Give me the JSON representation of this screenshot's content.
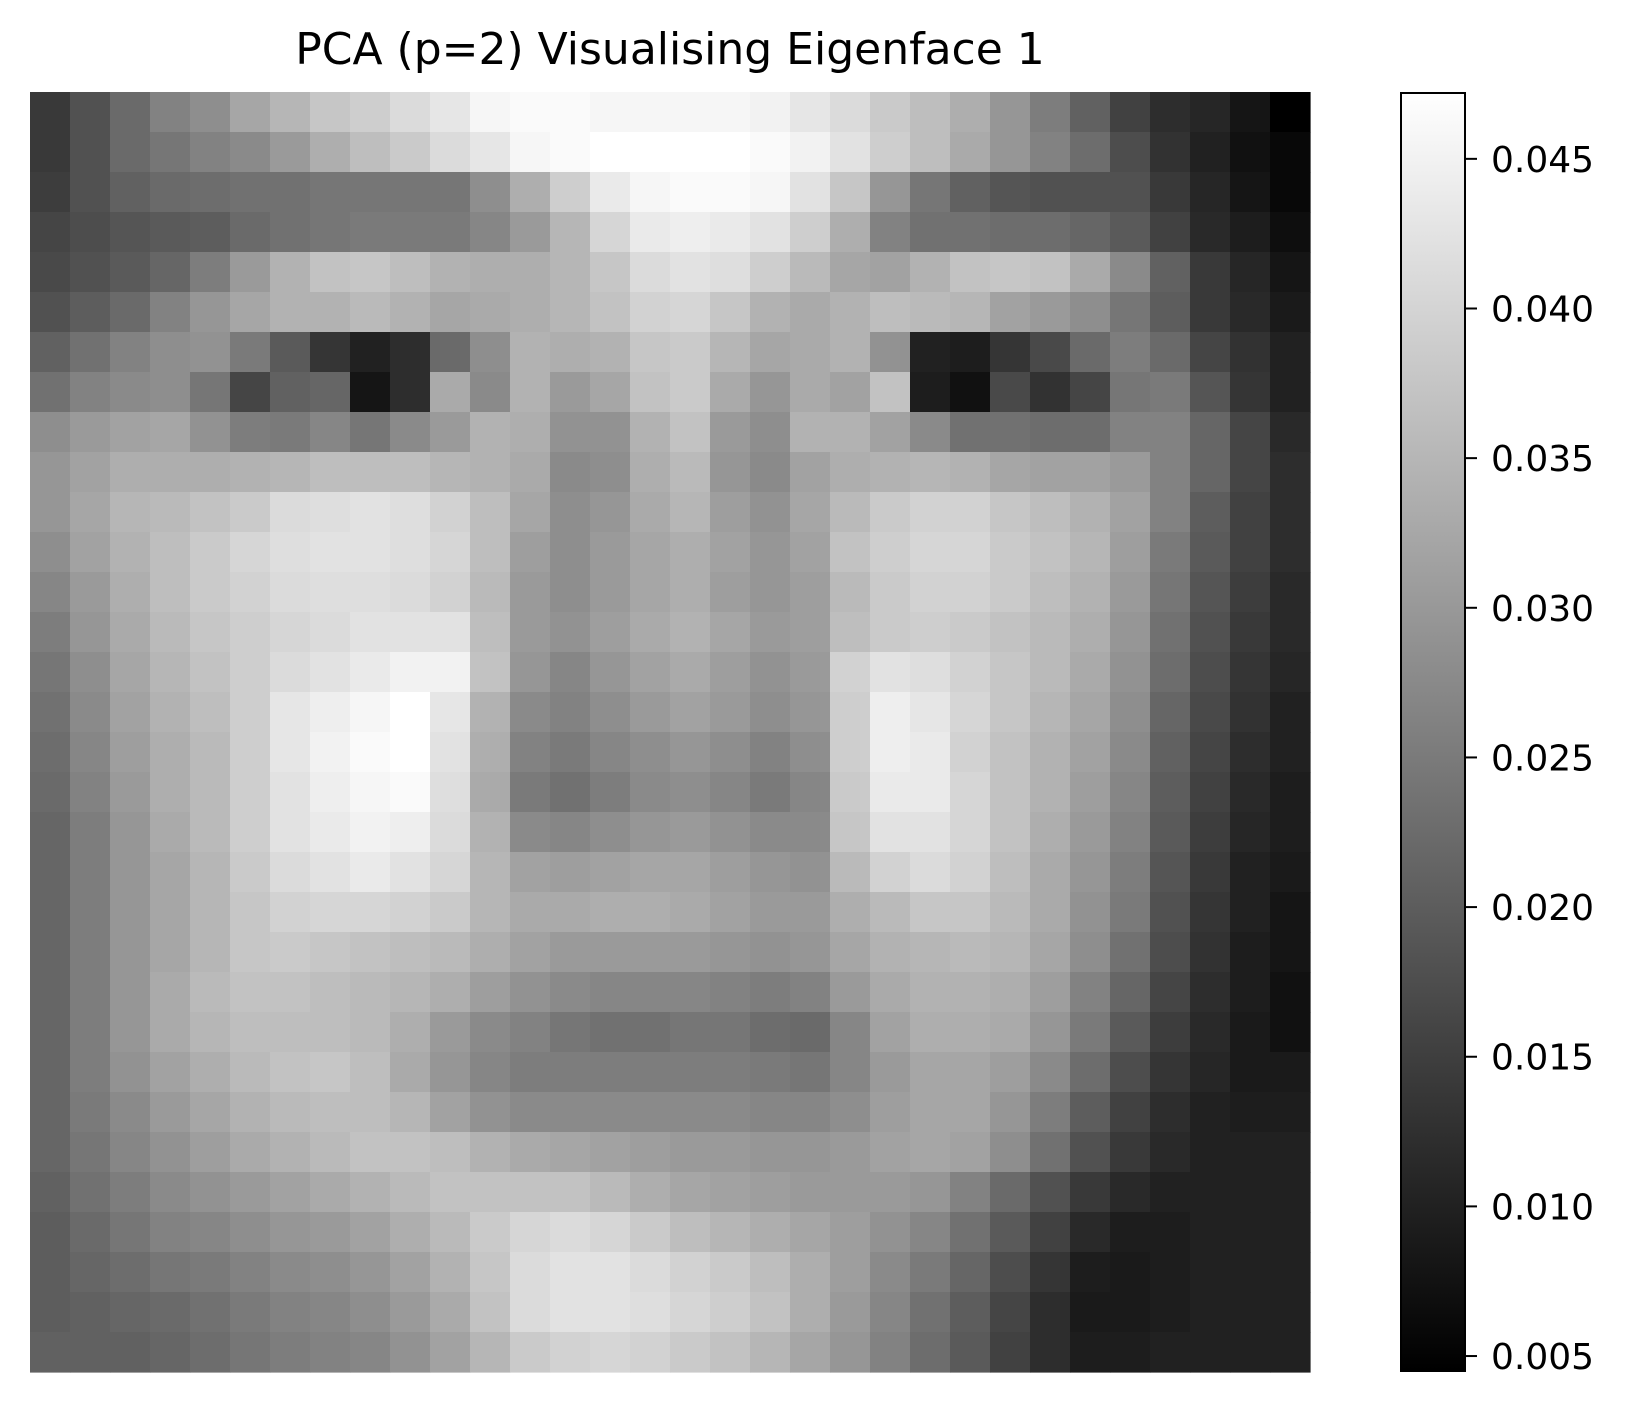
{
  "chart_data": {
    "type": "heatmap",
    "title": "PCA (p=2) Visualising Eigenface 1",
    "colormap": "gray",
    "rows": 32,
    "cols": 32,
    "axes_visible": false,
    "colorbar": {
      "vmin": 0.0045,
      "vmax": 0.0472,
      "ticks": [
        0.005,
        0.01,
        0.015,
        0.02,
        0.025,
        0.03,
        0.035,
        0.04,
        0.045
      ],
      "tick_labels": [
        "0.005",
        "0.010",
        "0.015",
        "0.020",
        "0.025",
        "0.030",
        "0.035",
        "0.040",
        "0.045"
      ]
    },
    "values_note": "approximate 32x32 pixel intensities read from the grayscale image",
    "values": [
      [
        0.0141,
        0.0181,
        0.0222,
        0.0262,
        0.0283,
        0.0323,
        0.035,
        0.0376,
        0.039,
        0.0411,
        0.043,
        0.0457,
        0.0464,
        0.0464,
        0.0457,
        0.0457,
        0.0457,
        0.0457,
        0.0451,
        0.043,
        0.0411,
        0.0384,
        0.0363,
        0.0336,
        0.0296,
        0.0255,
        0.0208,
        0.0154,
        0.0121,
        0.0108,
        0.0081,
        0.0045
      ],
      [
        0.0141,
        0.0181,
        0.0222,
        0.0242,
        0.0262,
        0.0276,
        0.0303,
        0.0336,
        0.0363,
        0.0384,
        0.0411,
        0.043,
        0.0457,
        0.0464,
        0.0472,
        0.0472,
        0.0472,
        0.0472,
        0.0464,
        0.0451,
        0.0424,
        0.039,
        0.0363,
        0.033,
        0.0296,
        0.0262,
        0.0228,
        0.0174,
        0.0128,
        0.0101,
        0.0074,
        0.0058
      ],
      [
        0.0147,
        0.0181,
        0.0208,
        0.0222,
        0.0228,
        0.0235,
        0.0235,
        0.0242,
        0.0242,
        0.0242,
        0.0242,
        0.0283,
        0.0336,
        0.039,
        0.0437,
        0.0457,
        0.0464,
        0.0464,
        0.0457,
        0.0424,
        0.0376,
        0.0296,
        0.0242,
        0.0208,
        0.0188,
        0.0181,
        0.0181,
        0.0181,
        0.0141,
        0.0108,
        0.0081,
        0.0058
      ],
      [
        0.0161,
        0.0174,
        0.0188,
        0.0195,
        0.0201,
        0.0222,
        0.0235,
        0.0242,
        0.0249,
        0.0249,
        0.0249,
        0.0269,
        0.0303,
        0.035,
        0.0403,
        0.0437,
        0.0444,
        0.0437,
        0.0424,
        0.039,
        0.0336,
        0.0262,
        0.0235,
        0.0235,
        0.0228,
        0.0228,
        0.0215,
        0.0195,
        0.0154,
        0.0114,
        0.0094,
        0.0068
      ],
      [
        0.0168,
        0.0181,
        0.0195,
        0.0215,
        0.0255,
        0.0303,
        0.0343,
        0.037,
        0.0376,
        0.0363,
        0.0343,
        0.0336,
        0.0336,
        0.035,
        0.0376,
        0.0411,
        0.0424,
        0.0417,
        0.039,
        0.0357,
        0.0323,
        0.0316,
        0.0343,
        0.037,
        0.0376,
        0.037,
        0.033,
        0.0276,
        0.0208,
        0.0141,
        0.0108,
        0.0081
      ],
      [
        0.0181,
        0.0201,
        0.0222,
        0.0262,
        0.0296,
        0.0323,
        0.0343,
        0.0343,
        0.0357,
        0.0343,
        0.0323,
        0.033,
        0.0336,
        0.035,
        0.037,
        0.0397,
        0.0403,
        0.0376,
        0.0343,
        0.033,
        0.0343,
        0.0363,
        0.0357,
        0.035,
        0.0316,
        0.0303,
        0.0283,
        0.0242,
        0.0201,
        0.0141,
        0.0114,
        0.0088
      ],
      [
        0.0208,
        0.0235,
        0.0262,
        0.0283,
        0.029,
        0.0249,
        0.0195,
        0.0134,
        0.0101,
        0.0121,
        0.0222,
        0.0283,
        0.0343,
        0.0336,
        0.0343,
        0.0376,
        0.0384,
        0.035,
        0.0323,
        0.033,
        0.0343,
        0.029,
        0.0101,
        0.0094,
        0.0134,
        0.0168,
        0.0222,
        0.0255,
        0.0222,
        0.0161,
        0.0128,
        0.0101
      ],
      [
        0.0235,
        0.0262,
        0.0276,
        0.0283,
        0.0242,
        0.0161,
        0.0208,
        0.0215,
        0.0081,
        0.0121,
        0.033,
        0.0276,
        0.0343,
        0.0303,
        0.0323,
        0.037,
        0.0384,
        0.033,
        0.0296,
        0.033,
        0.0316,
        0.037,
        0.0094,
        0.0074,
        0.0168,
        0.0128,
        0.0161,
        0.0242,
        0.0249,
        0.0188,
        0.0134,
        0.0101
      ],
      [
        0.0283,
        0.0303,
        0.0316,
        0.0323,
        0.029,
        0.0255,
        0.0249,
        0.0269,
        0.0242,
        0.0276,
        0.0303,
        0.0343,
        0.0336,
        0.029,
        0.029,
        0.0343,
        0.037,
        0.0303,
        0.0283,
        0.0343,
        0.0343,
        0.0316,
        0.0276,
        0.0235,
        0.0235,
        0.0228,
        0.0228,
        0.0262,
        0.0262,
        0.0215,
        0.0161,
        0.0114
      ],
      [
        0.0296,
        0.0316,
        0.0336,
        0.0336,
        0.0336,
        0.0343,
        0.035,
        0.0363,
        0.0363,
        0.0363,
        0.035,
        0.0343,
        0.033,
        0.0276,
        0.0283,
        0.0336,
        0.0357,
        0.0296,
        0.0276,
        0.0316,
        0.0336,
        0.0343,
        0.035,
        0.0343,
        0.0323,
        0.0316,
        0.0316,
        0.0303,
        0.0262,
        0.0215,
        0.0161,
        0.0121
      ],
      [
        0.0296,
        0.0323,
        0.035,
        0.0357,
        0.037,
        0.0384,
        0.0411,
        0.0417,
        0.0424,
        0.0417,
        0.0397,
        0.0363,
        0.0323,
        0.0283,
        0.0296,
        0.033,
        0.035,
        0.031,
        0.029,
        0.0323,
        0.0357,
        0.0384,
        0.0397,
        0.0397,
        0.0376,
        0.0363,
        0.0343,
        0.0316,
        0.0262,
        0.0201,
        0.0154,
        0.0121
      ],
      [
        0.0283,
        0.0316,
        0.0343,
        0.0363,
        0.0384,
        0.0403,
        0.0417,
        0.0424,
        0.0424,
        0.0417,
        0.0403,
        0.0363,
        0.031,
        0.0283,
        0.0303,
        0.0323,
        0.0336,
        0.0316,
        0.0296,
        0.0316,
        0.037,
        0.039,
        0.0403,
        0.0403,
        0.0384,
        0.037,
        0.035,
        0.031,
        0.0249,
        0.0195,
        0.0154,
        0.0121
      ],
      [
        0.0269,
        0.0303,
        0.0336,
        0.0363,
        0.0384,
        0.0397,
        0.0411,
        0.0417,
        0.0417,
        0.0411,
        0.0397,
        0.0357,
        0.0303,
        0.0283,
        0.0303,
        0.0323,
        0.0336,
        0.031,
        0.0296,
        0.031,
        0.0357,
        0.0384,
        0.0397,
        0.0397,
        0.0384,
        0.0363,
        0.0343,
        0.0303,
        0.0242,
        0.0188,
        0.0147,
        0.0114
      ],
      [
        0.0255,
        0.0296,
        0.033,
        0.0357,
        0.0376,
        0.039,
        0.0403,
        0.0411,
        0.0424,
        0.0424,
        0.0424,
        0.0363,
        0.0303,
        0.029,
        0.031,
        0.033,
        0.0343,
        0.0323,
        0.0303,
        0.031,
        0.0363,
        0.0384,
        0.039,
        0.0384,
        0.037,
        0.0357,
        0.0336,
        0.0296,
        0.0235,
        0.0181,
        0.0141,
        0.0114
      ],
      [
        0.0242,
        0.0283,
        0.0323,
        0.035,
        0.037,
        0.039,
        0.0411,
        0.0424,
        0.0437,
        0.0451,
        0.0451,
        0.037,
        0.0296,
        0.0269,
        0.0296,
        0.0316,
        0.033,
        0.031,
        0.029,
        0.0303,
        0.0397,
        0.0424,
        0.0417,
        0.0397,
        0.0376,
        0.0357,
        0.033,
        0.029,
        0.0228,
        0.0174,
        0.0134,
        0.0108
      ],
      [
        0.0235,
        0.0276,
        0.0316,
        0.0343,
        0.0363,
        0.039,
        0.043,
        0.0444,
        0.0457,
        0.0472,
        0.043,
        0.0343,
        0.0276,
        0.0262,
        0.0283,
        0.0303,
        0.0316,
        0.0303,
        0.0283,
        0.0296,
        0.039,
        0.0444,
        0.043,
        0.0403,
        0.0376,
        0.035,
        0.0323,
        0.0283,
        0.0215,
        0.0168,
        0.0128,
        0.0101
      ],
      [
        0.0228,
        0.0269,
        0.031,
        0.0336,
        0.0357,
        0.039,
        0.043,
        0.0451,
        0.0464,
        0.0472,
        0.0424,
        0.0336,
        0.0262,
        0.0249,
        0.0269,
        0.0283,
        0.0296,
        0.0283,
        0.0262,
        0.0283,
        0.039,
        0.0444,
        0.0437,
        0.0397,
        0.037,
        0.0343,
        0.0316,
        0.0276,
        0.0208,
        0.0161,
        0.0121,
        0.0101
      ],
      [
        0.0222,
        0.0262,
        0.0303,
        0.0336,
        0.0357,
        0.039,
        0.0424,
        0.0444,
        0.0457,
        0.0464,
        0.0417,
        0.033,
        0.0249,
        0.0235,
        0.0255,
        0.0276,
        0.0283,
        0.0269,
        0.0249,
        0.0269,
        0.0384,
        0.0437,
        0.0437,
        0.0403,
        0.037,
        0.0343,
        0.031,
        0.0269,
        0.0201,
        0.0154,
        0.0114,
        0.0094
      ],
      [
        0.0215,
        0.0255,
        0.0296,
        0.033,
        0.0357,
        0.039,
        0.0424,
        0.0437,
        0.0451,
        0.0444,
        0.0411,
        0.0343,
        0.0276,
        0.0269,
        0.0283,
        0.0296,
        0.0303,
        0.029,
        0.0276,
        0.0276,
        0.0376,
        0.0424,
        0.0424,
        0.0403,
        0.037,
        0.0336,
        0.0303,
        0.0262,
        0.0195,
        0.0147,
        0.0108,
        0.0094
      ],
      [
        0.0215,
        0.0255,
        0.0296,
        0.0323,
        0.035,
        0.0384,
        0.0411,
        0.0424,
        0.0437,
        0.0424,
        0.0403,
        0.035,
        0.0316,
        0.031,
        0.0316,
        0.0323,
        0.0323,
        0.031,
        0.0296,
        0.029,
        0.0357,
        0.0397,
        0.0411,
        0.0397,
        0.0363,
        0.033,
        0.0296,
        0.0255,
        0.0188,
        0.0141,
        0.0101,
        0.0088
      ],
      [
        0.0215,
        0.0255,
        0.0296,
        0.0323,
        0.035,
        0.0376,
        0.0397,
        0.0403,
        0.0403,
        0.0397,
        0.0384,
        0.035,
        0.033,
        0.033,
        0.0336,
        0.0336,
        0.033,
        0.0316,
        0.0303,
        0.0303,
        0.0336,
        0.0357,
        0.0376,
        0.0376,
        0.0357,
        0.033,
        0.029,
        0.0249,
        0.0181,
        0.0134,
        0.0101,
        0.0081
      ],
      [
        0.0215,
        0.0255,
        0.0296,
        0.0323,
        0.035,
        0.0376,
        0.0384,
        0.0376,
        0.037,
        0.0363,
        0.0357,
        0.0336,
        0.0316,
        0.0303,
        0.0303,
        0.0303,
        0.0303,
        0.0296,
        0.029,
        0.0296,
        0.0323,
        0.0343,
        0.035,
        0.0357,
        0.035,
        0.0323,
        0.0283,
        0.0235,
        0.0174,
        0.0128,
        0.0094,
        0.0081
      ],
      [
        0.0215,
        0.0255,
        0.0296,
        0.033,
        0.0357,
        0.037,
        0.037,
        0.0363,
        0.0357,
        0.035,
        0.0336,
        0.031,
        0.029,
        0.0276,
        0.0269,
        0.0269,
        0.0269,
        0.0262,
        0.0255,
        0.0262,
        0.0303,
        0.033,
        0.0343,
        0.0343,
        0.0336,
        0.031,
        0.0262,
        0.0215,
        0.0161,
        0.0121,
        0.0094,
        0.0074
      ],
      [
        0.0215,
        0.0255,
        0.0296,
        0.033,
        0.035,
        0.0363,
        0.0363,
        0.0363,
        0.0357,
        0.0336,
        0.0303,
        0.0276,
        0.0262,
        0.0242,
        0.0235,
        0.0235,
        0.0242,
        0.0242,
        0.0228,
        0.0222,
        0.0269,
        0.0316,
        0.0336,
        0.0336,
        0.033,
        0.0296,
        0.0249,
        0.0195,
        0.0147,
        0.0114,
        0.0088,
        0.0074
      ],
      [
        0.0215,
        0.0255,
        0.029,
        0.0316,
        0.0336,
        0.0357,
        0.037,
        0.0376,
        0.0363,
        0.033,
        0.0296,
        0.0269,
        0.0255,
        0.0255,
        0.0255,
        0.0255,
        0.0255,
        0.0255,
        0.0249,
        0.0242,
        0.0269,
        0.0303,
        0.0323,
        0.0323,
        0.031,
        0.0276,
        0.0228,
        0.0174,
        0.0134,
        0.0108,
        0.0088,
        0.0088
      ],
      [
        0.0215,
        0.0249,
        0.0276,
        0.0303,
        0.0323,
        0.0343,
        0.0357,
        0.0363,
        0.0363,
        0.035,
        0.0316,
        0.029,
        0.0276,
        0.0276,
        0.0276,
        0.0276,
        0.0276,
        0.0276,
        0.0269,
        0.0269,
        0.0283,
        0.031,
        0.0323,
        0.0323,
        0.0296,
        0.0255,
        0.0201,
        0.0154,
        0.0121,
        0.0101,
        0.0094,
        0.0094
      ],
      [
        0.0215,
        0.0242,
        0.0269,
        0.029,
        0.031,
        0.033,
        0.0343,
        0.0357,
        0.037,
        0.037,
        0.0363,
        0.0343,
        0.033,
        0.0323,
        0.0316,
        0.031,
        0.0303,
        0.0303,
        0.0296,
        0.0296,
        0.0303,
        0.0316,
        0.0323,
        0.0316,
        0.0283,
        0.0235,
        0.0181,
        0.0141,
        0.0114,
        0.0101,
        0.0101,
        0.0101
      ],
      [
        0.0208,
        0.0235,
        0.0255,
        0.0276,
        0.029,
        0.0303,
        0.0316,
        0.033,
        0.0343,
        0.0357,
        0.037,
        0.037,
        0.037,
        0.037,
        0.0357,
        0.0336,
        0.0323,
        0.0316,
        0.031,
        0.0303,
        0.0303,
        0.0303,
        0.0296,
        0.0262,
        0.0222,
        0.0181,
        0.0141,
        0.0114,
        0.0101,
        0.0101,
        0.0101,
        0.0101
      ],
      [
        0.0201,
        0.0222,
        0.0242,
        0.0262,
        0.0269,
        0.0283,
        0.0296,
        0.0303,
        0.0316,
        0.0336,
        0.0357,
        0.0384,
        0.0403,
        0.0411,
        0.0403,
        0.0384,
        0.0363,
        0.035,
        0.0336,
        0.0323,
        0.031,
        0.029,
        0.0269,
        0.0235,
        0.0195,
        0.0154,
        0.0114,
        0.0094,
        0.0094,
        0.0101,
        0.0101,
        0.0101
      ],
      [
        0.0201,
        0.0215,
        0.0228,
        0.0242,
        0.0249,
        0.0262,
        0.0276,
        0.0283,
        0.0296,
        0.0316,
        0.0343,
        0.0376,
        0.0411,
        0.0424,
        0.0424,
        0.0411,
        0.0397,
        0.0384,
        0.0363,
        0.0336,
        0.031,
        0.0276,
        0.0249,
        0.0215,
        0.0174,
        0.0134,
        0.0094,
        0.0088,
        0.0094,
        0.0101,
        0.0101,
        0.0101
      ],
      [
        0.0201,
        0.0208,
        0.0215,
        0.0222,
        0.0235,
        0.0249,
        0.0262,
        0.0269,
        0.0283,
        0.0303,
        0.033,
        0.037,
        0.0411,
        0.0424,
        0.0424,
        0.0417,
        0.0403,
        0.039,
        0.037,
        0.0336,
        0.0303,
        0.0269,
        0.0235,
        0.0201,
        0.0161,
        0.0121,
        0.0088,
        0.0088,
        0.0094,
        0.0101,
        0.0101,
        0.0101
      ],
      [
        0.0208,
        0.0208,
        0.0208,
        0.0215,
        0.0228,
        0.0242,
        0.0255,
        0.0262,
        0.0269,
        0.029,
        0.0316,
        0.035,
        0.0384,
        0.0397,
        0.0403,
        0.0397,
        0.0384,
        0.037,
        0.035,
        0.0323,
        0.0296,
        0.0262,
        0.0228,
        0.0195,
        0.0154,
        0.0121,
        0.0094,
        0.0094,
        0.0101,
        0.0101,
        0.0101,
        0.0101
      ]
    ]
  }
}
